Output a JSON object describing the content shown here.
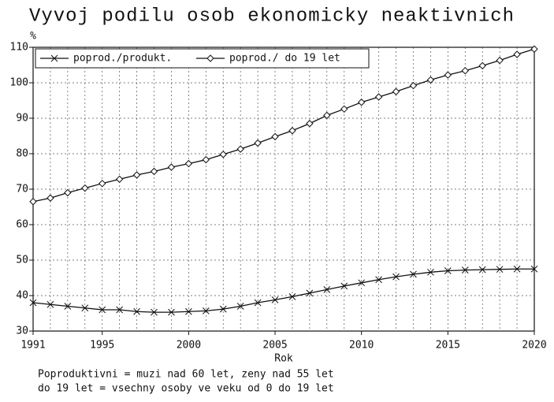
{
  "chart_data": {
    "type": "line",
    "title": "Vyvoj podilu osob ekonomicky neaktivnich",
    "y_label": "%",
    "x_label": "Rok",
    "notes": [
      "Poproduktivni = muzi nad 60 let, zeny nad 55 let",
      "do 19 let = vsechny osoby ve veku od 0 do 19 let"
    ],
    "x": [
      1991,
      1992,
      1993,
      1994,
      1995,
      1996,
      1997,
      1998,
      1999,
      2000,
      2001,
      2002,
      2003,
      2004,
      2005,
      2006,
      2007,
      2008,
      2009,
      2010,
      2011,
      2012,
      2013,
      2014,
      2015,
      2016,
      2017,
      2018,
      2019,
      2020
    ],
    "series": [
      {
        "name": "poprod./produkt.",
        "color": "#111111",
        "marker": "x",
        "values": [
          38,
          37.5,
          37,
          36.5,
          36,
          36,
          35.5,
          35.3,
          35.3,
          35.5,
          35.7,
          36.2,
          37,
          38,
          38.8,
          39.7,
          40.7,
          41.7,
          42.7,
          43.6,
          44.5,
          45.3,
          46,
          46.6,
          47,
          47.2,
          47.3,
          47.4,
          47.5,
          47.5
        ]
      },
      {
        "name": "poprod./ do 19 let",
        "color": "#111111",
        "marker": "diamond",
        "values": [
          66.5,
          67.5,
          69,
          70.3,
          71.6,
          72.8,
          74,
          75,
          76.2,
          77.2,
          78.3,
          79.8,
          81.3,
          83,
          84.8,
          86.5,
          88.5,
          90.8,
          92.6,
          94.5,
          96,
          97.5,
          99.2,
          100.8,
          102.2,
          103.4,
          104.8,
          106.3,
          108,
          109.5
        ]
      }
    ],
    "xlim": [
      1991,
      2020
    ],
    "xticks": [
      1991,
      1995,
      2000,
      2005,
      2010,
      2015,
      2020
    ],
    "ylim": [
      30,
      110
    ],
    "yticks": [
      30,
      40,
      50,
      60,
      70,
      80,
      90,
      100,
      110
    ],
    "grid": true,
    "legend": "top-left"
  }
}
